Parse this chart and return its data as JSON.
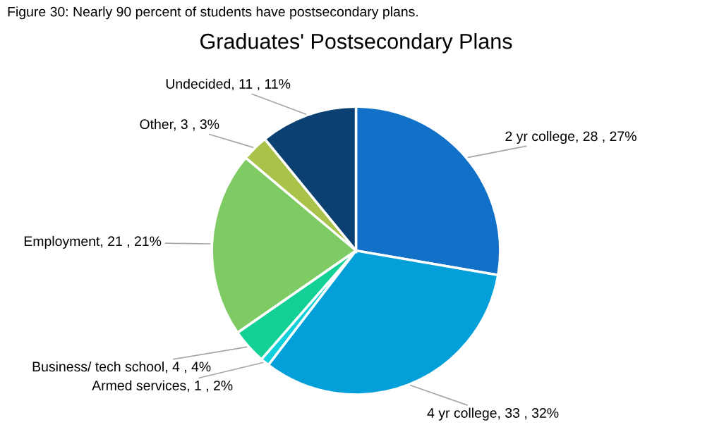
{
  "chart_data": {
    "type": "pie",
    "title": "Graduates' Postsecondary Plans",
    "annotations": [
      "Figure 30: Nearly 90 percent of students have postsecondary plans."
    ],
    "categories": [
      "2 yr college",
      "4 yr college",
      "Armed services",
      "Business/ tech school",
      "Employment",
      "Other",
      "Undecided"
    ],
    "values": [
      28,
      33,
      1,
      4,
      21,
      3,
      11
    ],
    "value_labels": [
      "28 , 27%",
      "33 , 32%",
      "1 , 2%",
      "4 , 4%",
      "21 , 21%",
      "3 , 3%",
      "11 , 11%"
    ],
    "colors": [
      "#1170c8",
      "#039fd8",
      "#12d0da",
      "#12d096",
      "#7ecb64",
      "#a8c24a",
      "#0b4073"
    ]
  }
}
